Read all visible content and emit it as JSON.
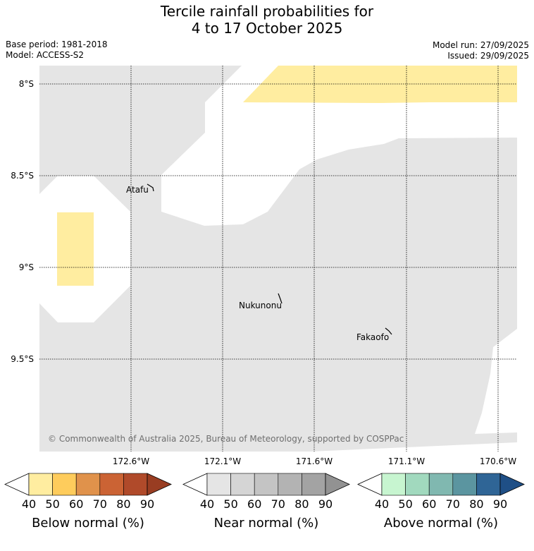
{
  "title": {
    "line1": "Tercile rainfall probabilities for",
    "line2": "4 to 17 October 2025"
  },
  "meta_left": {
    "base_period": "Base period: 1981-2018",
    "model": "Model: ACCESS-S2"
  },
  "meta_right": {
    "model_run": "Model run: 27/09/2025",
    "issued": "Issued: 29/09/2025"
  },
  "map": {
    "lat_labels": [
      "8°S",
      "8.5°S",
      "9°S",
      "9.5°S"
    ],
    "lon_labels": [
      "172.6°W",
      "172.1°W",
      "171.6°W",
      "171.1°W",
      "170.6°W"
    ],
    "places": [
      {
        "name": "Atafu"
      },
      {
        "name": "Nukunonu"
      },
      {
        "name": "Fakaofo"
      }
    ],
    "copyright": "© Commonwealth of Australia 2025, Bureau of Meteorology, supported by COSPPac",
    "colors": {
      "near_normal_fill": "#e5e5e5",
      "below_normal_40_50": "#ffeda0",
      "no_dominant": "#ffffff"
    }
  },
  "colorbars": [
    {
      "label": "Below normal (%)",
      "ticks": [
        "40",
        "50",
        "60",
        "70",
        "80",
        "90"
      ],
      "colors": [
        "#ffeda0",
        "#fecc5c",
        "#e0924b",
        "#cb6334",
        "#b04a2a",
        "#993d22"
      ]
    },
    {
      "label": "Near normal (%)",
      "ticks": [
        "40",
        "50",
        "60",
        "70",
        "80",
        "90"
      ],
      "colors": [
        "#e5e5e5",
        "#d5d5d5",
        "#c4c4c4",
        "#b3b3b3",
        "#a3a3a3",
        "#929292"
      ]
    },
    {
      "label": "Above normal (%)",
      "ticks": [
        "40",
        "50",
        "60",
        "70",
        "80",
        "90"
      ],
      "colors": [
        "#c7f5d0",
        "#a1d9be",
        "#80b8b0",
        "#5b95a0",
        "#2f6596",
        "#1f4f86"
      ]
    }
  ]
}
